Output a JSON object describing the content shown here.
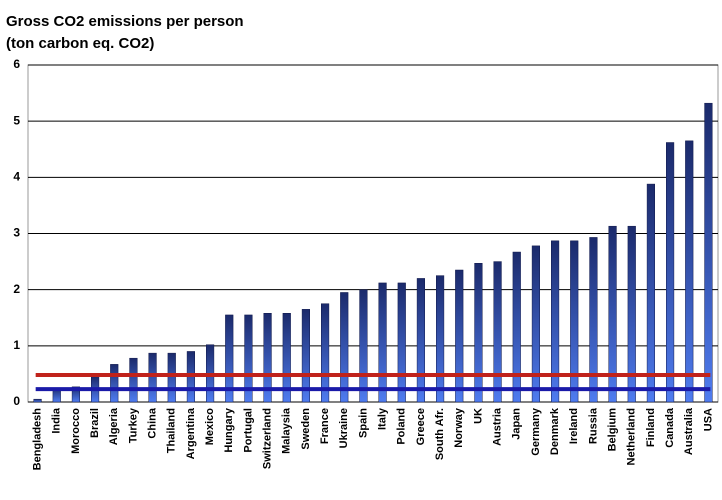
{
  "chart_data": {
    "type": "bar",
    "title": "Gross CO2 emissions per person",
    "subtitle": "(ton carbon eq. CO2)",
    "categories": [
      "Bengladesh",
      "India",
      "Morocco",
      "Brazil",
      "Algeria",
      "Turkey",
      "China",
      "Thailand",
      "Argentina",
      "Mexico",
      "Hungary",
      "Portugal",
      "Switzerland",
      "Malaysia",
      "Sweden",
      "France",
      "Ukraine",
      "Spain",
      "Italy",
      "Poland",
      "Greece",
      "South Afr.",
      "Norway",
      "UK",
      "Austria",
      "Japan",
      "Germany",
      "Denmark",
      "Ireland",
      "Russia",
      "Belgium",
      "Netherland",
      "Finland",
      "Canada",
      "Australia",
      "USA"
    ],
    "values": [
      0.05,
      0.25,
      0.27,
      0.45,
      0.67,
      0.78,
      0.87,
      0.87,
      0.9,
      1.02,
      1.55,
      1.55,
      1.58,
      1.58,
      1.65,
      1.75,
      1.95,
      2.0,
      2.12,
      2.12,
      2.2,
      2.25,
      2.35,
      2.47,
      2.5,
      2.67,
      2.78,
      2.87,
      2.87,
      2.93,
      3.13,
      3.13,
      3.88,
      4.62,
      4.65,
      5.32
    ],
    "gradient": [
      "#1b2a6b",
      "#4f7cf0"
    ],
    "reference_lines": [
      {
        "value": 0.48,
        "color": "#c0221b"
      },
      {
        "value": 0.23,
        "color": "#1a1aa8"
      }
    ],
    "ylim": [
      0,
      6
    ],
    "yticks": [
      0,
      1,
      2,
      3,
      4,
      5,
      6
    ],
    "grid": true
  }
}
